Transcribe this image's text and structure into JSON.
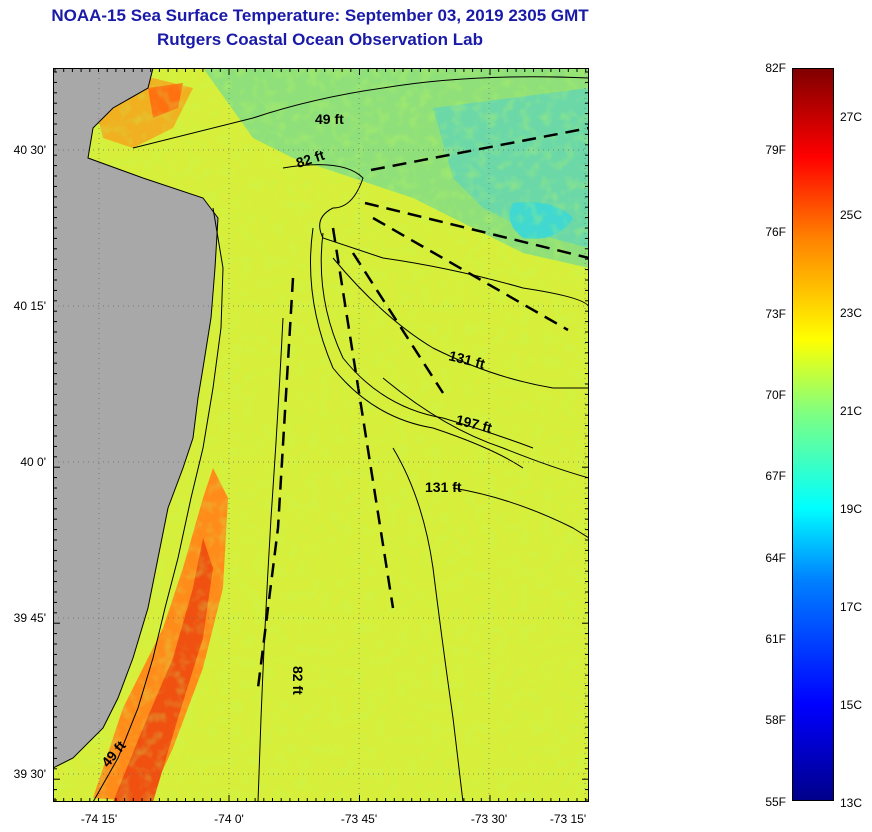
{
  "header": {
    "title": "NOAA-15 Sea Surface Temperature:  September 03, 2019 2305 GMT",
    "subtitle": "Rutgers Coastal Ocean Observation Lab"
  },
  "map": {
    "lat_labels": [
      "40 30'",
      "40 15'",
      "40 0'",
      "39 45'",
      "39 30'"
    ],
    "lon_labels": [
      "-74 15'",
      "-74 0'",
      "-73 45'",
      "-73 30'",
      "-73 15'"
    ],
    "depth_labels": [
      "49 ft",
      "82 ft",
      "131 ft",
      "197 ft",
      "131 ft",
      "82 ft",
      "49 ft"
    ],
    "colors": {
      "land": "#a8a8a8",
      "water_base": "#c8e84a",
      "warm": "#ff9a1a",
      "cool": "#5ad0b0",
      "title": "#1a1aa8"
    }
  },
  "colorbar": {
    "fahrenheit": [
      "82F",
      "79F",
      "76F",
      "73F",
      "70F",
      "67F",
      "64F",
      "61F",
      "58F",
      "55F"
    ],
    "celsius": [
      "27C",
      "25C",
      "23C",
      "21C",
      "19C",
      "17C",
      "15C",
      "13C"
    ]
  }
}
